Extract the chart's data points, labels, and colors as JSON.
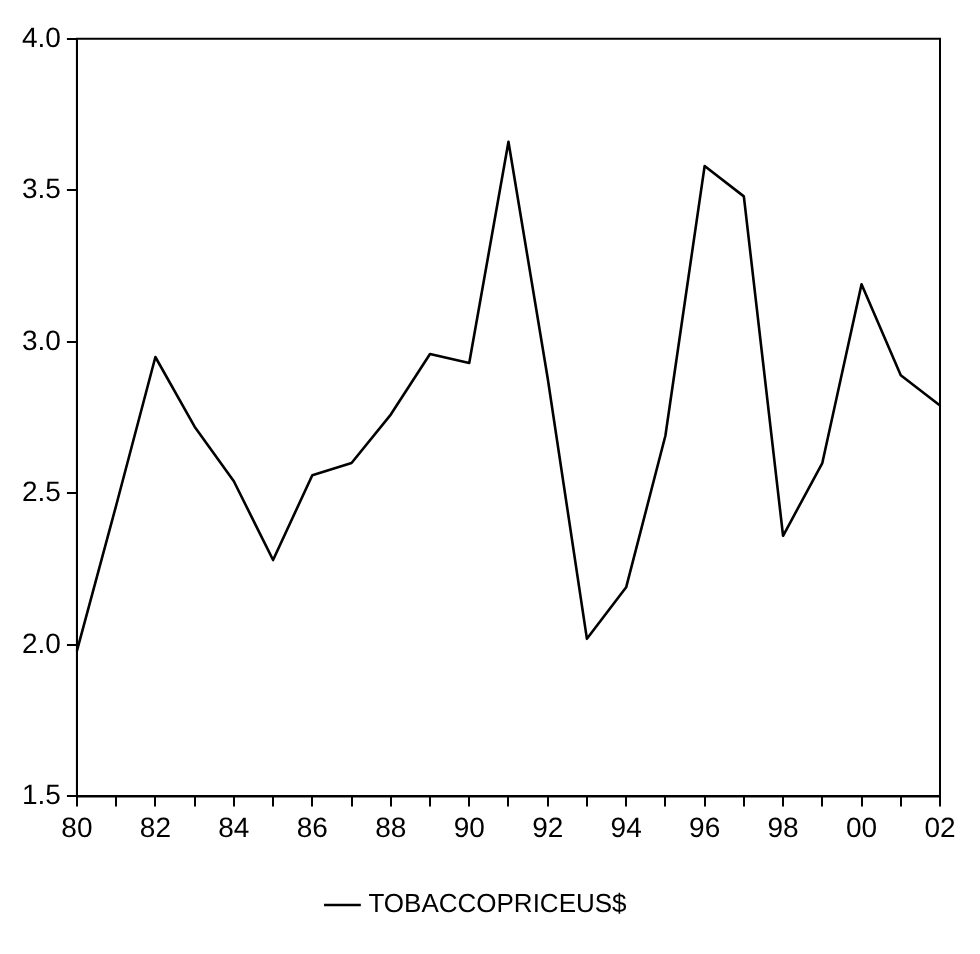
{
  "chart_data": {
    "type": "line",
    "categories": [
      "80",
      null,
      "82",
      null,
      "84",
      null,
      "86",
      null,
      "88",
      null,
      "90",
      null,
      "92",
      null,
      "94",
      null,
      "96",
      null,
      "98",
      null,
      "00",
      null,
      "02"
    ],
    "series": [
      {
        "name": "TOBACCOPRICEUS$",
        "color": "#000000",
        "values": [
          1.98,
          2.46,
          2.95,
          2.72,
          2.54,
          2.28,
          2.56,
          2.6,
          2.76,
          2.96,
          2.93,
          3.66,
          2.88,
          2.02,
          2.19,
          2.69,
          3.58,
          3.48,
          2.36,
          2.6,
          3.19,
          2.89,
          2.79
        ]
      }
    ],
    "ylim": [
      1.5,
      4.0
    ],
    "yticks": [
      {
        "value": 1.5,
        "label": "1.5"
      },
      {
        "value": 2.0,
        "label": "2.0"
      },
      {
        "value": 2.5,
        "label": "2.5"
      },
      {
        "value": 3.0,
        "label": "3.0"
      },
      {
        "value": 3.5,
        "label": "3.5"
      },
      {
        "value": 4.0,
        "label": "4.0"
      }
    ],
    "grid": false,
    "legend": "bottom",
    "marker": "none",
    "line_style": "solid"
  }
}
